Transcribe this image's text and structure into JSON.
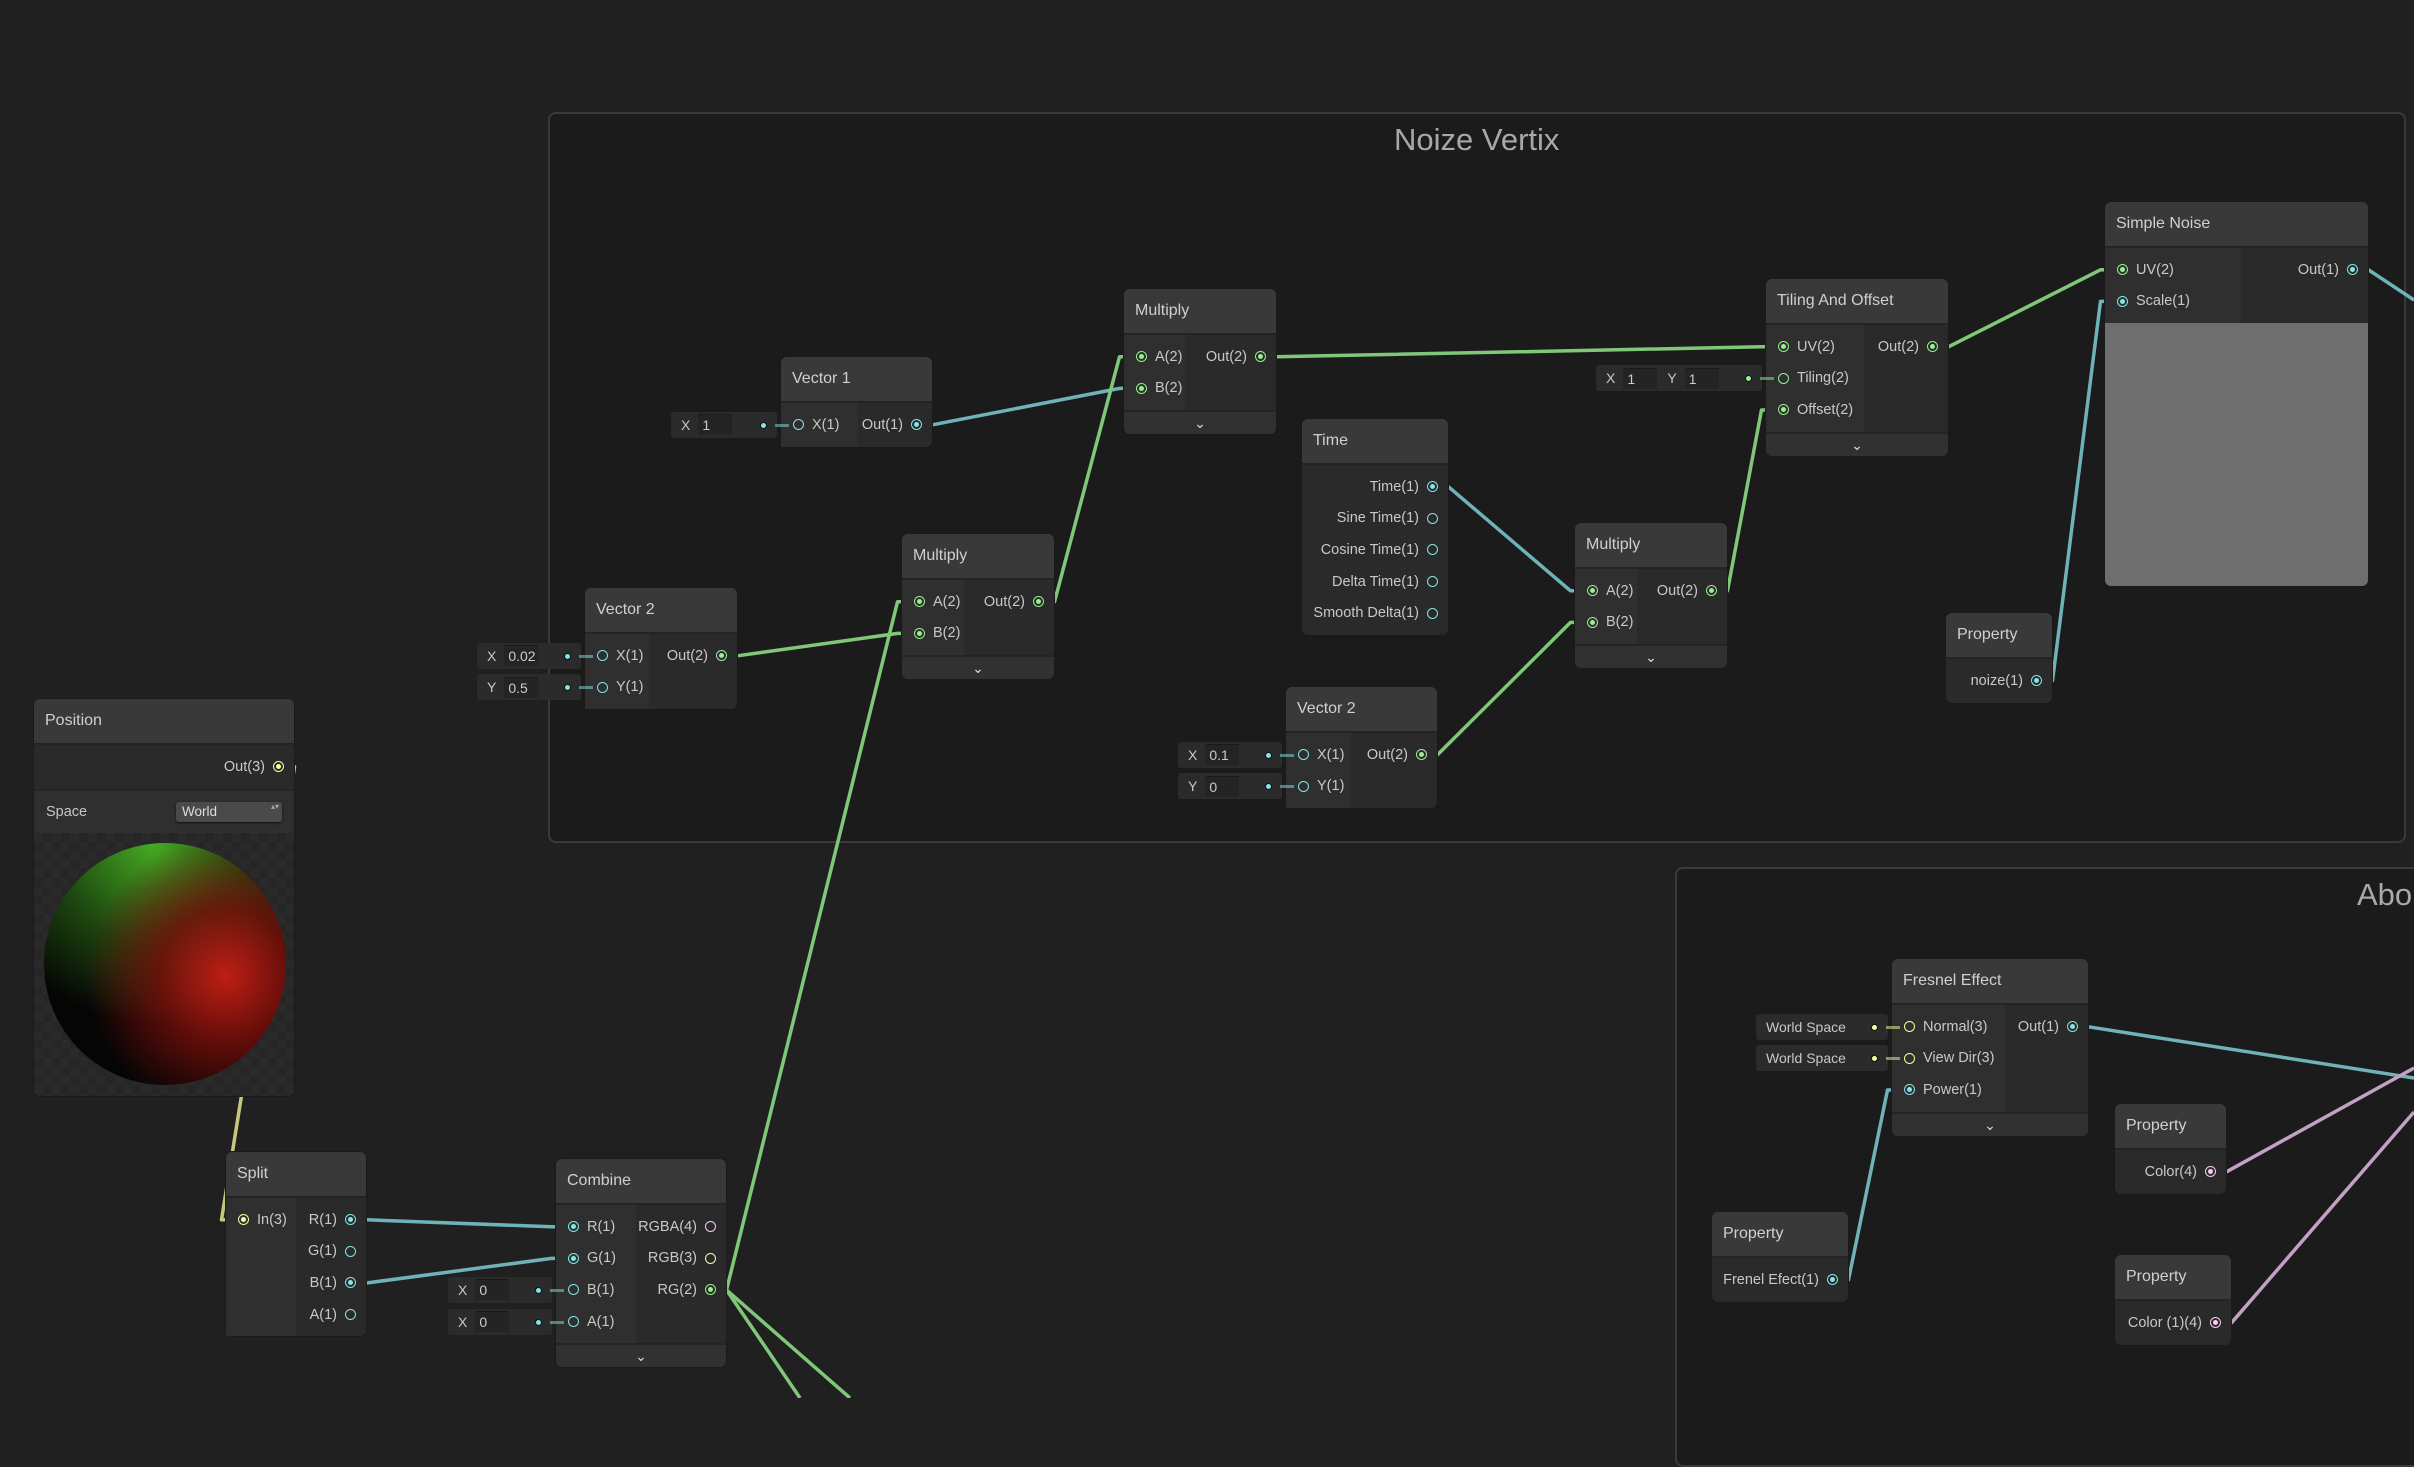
{
  "colors": {
    "canvas": "#202020",
    "group": "#1b1b1b",
    "vector1": "#84e4e7",
    "vector2": "#9aef92",
    "vector3": "#f6ff9a",
    "vector4": "#fbcbf4",
    "edge_vector1": "#6fb3b8",
    "edge_vector2": "#80c77a",
    "edge_vector3": "#c9c77c",
    "edge_vector4": "#c4a1c4"
  },
  "groups": [
    {
      "id": "noize",
      "title": "Noize Vertix"
    },
    {
      "id": "abo",
      "title": "Abo"
    }
  ],
  "collapse_icon": "chevron-down-icon",
  "nodes": [
    {
      "id": "position",
      "title": "Position",
      "inputs": [],
      "outputs": [
        {
          "label": "Out(3)",
          "type": "vector3"
        }
      ],
      "control": {
        "label": "Space",
        "value": "World"
      },
      "preview": "sphere"
    },
    {
      "id": "vector1",
      "title": "Vector 1",
      "inputs": [
        {
          "label": "X(1)",
          "type": "vector1",
          "field": [
            {
              "axis": "X",
              "value": "1"
            }
          ]
        }
      ],
      "outputs": [
        {
          "label": "Out(1)",
          "type": "vector1"
        }
      ]
    },
    {
      "id": "multiply_a",
      "title": "Multiply",
      "inputs": [
        {
          "label": "A(2)",
          "type": "vector2"
        },
        {
          "label": "B(2)",
          "type": "vector2"
        }
      ],
      "outputs": [
        {
          "label": "Out(2)",
          "type": "vector2"
        }
      ],
      "collapsible": true
    },
    {
      "id": "vector2_a",
      "title": "Vector 2",
      "inputs": [
        {
          "label": "X(1)",
          "type": "vector1",
          "field": [
            {
              "axis": "X",
              "value": "0.02"
            }
          ]
        },
        {
          "label": "Y(1)",
          "type": "vector1",
          "field": [
            {
              "axis": "Y",
              "value": "0.5"
            }
          ]
        }
      ],
      "outputs": [
        {
          "label": "Out(2)",
          "type": "vector2"
        }
      ]
    },
    {
      "id": "multiply_b",
      "title": "Multiply",
      "inputs": [
        {
          "label": "A(2)",
          "type": "vector2"
        },
        {
          "label": "B(2)",
          "type": "vector2"
        }
      ],
      "outputs": [
        {
          "label": "Out(2)",
          "type": "vector2"
        }
      ],
      "collapsible": true
    },
    {
      "id": "time",
      "title": "Time",
      "inputs": [],
      "outputs": [
        {
          "label": "Time(1)",
          "type": "vector1"
        },
        {
          "label": "Sine Time(1)",
          "type": "vector1"
        },
        {
          "label": "Cosine Time(1)",
          "type": "vector1"
        },
        {
          "label": "Delta Time(1)",
          "type": "vector1"
        },
        {
          "label": "Smooth Delta(1)",
          "type": "vector1"
        }
      ]
    },
    {
      "id": "multiply_c",
      "title": "Multiply",
      "inputs": [
        {
          "label": "A(2)",
          "type": "vector2"
        },
        {
          "label": "B(2)",
          "type": "vector2"
        }
      ],
      "outputs": [
        {
          "label": "Out(2)",
          "type": "vector2"
        }
      ],
      "collapsible": true
    },
    {
      "id": "vector2_b",
      "title": "Vector 2",
      "inputs": [
        {
          "label": "X(1)",
          "type": "vector1",
          "field": [
            {
              "axis": "X",
              "value": "0.1"
            }
          ]
        },
        {
          "label": "Y(1)",
          "type": "vector1",
          "field": [
            {
              "axis": "Y",
              "value": "0"
            }
          ]
        }
      ],
      "outputs": [
        {
          "label": "Out(2)",
          "type": "vector2"
        }
      ]
    },
    {
      "id": "tiling",
      "title": "Tiling And Offset",
      "inputs": [
        {
          "label": "UV(2)",
          "type": "vector2"
        },
        {
          "label": "Tiling(2)",
          "type": "vector2",
          "field": [
            {
              "axis": "X",
              "value": "1"
            },
            {
              "axis": "Y",
              "value": "1"
            }
          ]
        },
        {
          "label": "Offset(2)",
          "type": "vector2"
        }
      ],
      "outputs": [
        {
          "label": "Out(2)",
          "type": "vector2"
        }
      ],
      "collapsible": true
    },
    {
      "id": "simple_noise",
      "title": "Simple Noise",
      "inputs": [
        {
          "label": "UV(2)",
          "type": "vector2"
        },
        {
          "label": "Scale(1)",
          "type": "vector1"
        }
      ],
      "outputs": [
        {
          "label": "Out(1)",
          "type": "vector1"
        }
      ],
      "preview": "noise"
    },
    {
      "id": "property_noize",
      "title": "Property",
      "inputs": [],
      "outputs": [
        {
          "label": "noize(1)",
          "type": "vector1"
        }
      ]
    },
    {
      "id": "split",
      "title": "Split",
      "inputs": [
        {
          "label": "In(3)",
          "type": "vector3"
        }
      ],
      "outputs": [
        {
          "label": "R(1)",
          "type": "vector1"
        },
        {
          "label": "G(1)",
          "type": "vector1"
        },
        {
          "label": "B(1)",
          "type": "vector1"
        },
        {
          "label": "A(1)",
          "type": "vector1"
        }
      ]
    },
    {
      "id": "combine",
      "title": "Combine",
      "inputs": [
        {
          "label": "R(1)",
          "type": "vector1"
        },
        {
          "label": "G(1)",
          "type": "vector1"
        },
        {
          "label": "B(1)",
          "type": "vector1",
          "field": [
            {
              "axis": "X",
              "value": "0"
            }
          ]
        },
        {
          "label": "A(1)",
          "type": "vector1",
          "field": [
            {
              "axis": "X",
              "value": "0"
            }
          ]
        }
      ],
      "outputs": [
        {
          "label": "RGBA(4)",
          "type": "vector4"
        },
        {
          "label": "RGB(3)",
          "type": "vector3"
        },
        {
          "label": "RG(2)",
          "type": "vector2"
        }
      ],
      "collapsible": true
    },
    {
      "id": "fresnel",
      "title": "Fresnel Effect",
      "inputs": [
        {
          "label": "Normal(3)",
          "type": "vector3",
          "field": [
            {
              "text": "World Space"
            }
          ]
        },
        {
          "label": "View Dir(3)",
          "type": "vector3",
          "field": [
            {
              "text": "World Space"
            }
          ]
        },
        {
          "label": "Power(1)",
          "type": "vector1"
        }
      ],
      "outputs": [
        {
          "label": "Out(1)",
          "type": "vector1"
        }
      ],
      "collapsible": true
    },
    {
      "id": "property_frenel",
      "title": "Property",
      "inputs": [],
      "outputs": [
        {
          "label": "Frenel Efect(1)",
          "type": "vector1"
        }
      ]
    },
    {
      "id": "property_color",
      "title": "Property",
      "inputs": [],
      "outputs": [
        {
          "label": "Color(4)",
          "type": "vector4"
        }
      ]
    },
    {
      "id": "property_color1",
      "title": "Property",
      "inputs": [],
      "outputs": [
        {
          "label": "Color (1)(4)",
          "type": "vector4"
        }
      ]
    }
  ],
  "edges": [
    {
      "from": "vector1.out.0",
      "to": "multiply_a.in.1"
    },
    {
      "from": "multiply_b.out.0",
      "to": "multiply_a.in.0"
    },
    {
      "from": "vector2_a.out.0",
      "to": "multiply_b.in.1"
    },
    {
      "from": "combine.out.2",
      "to": "multiply_b.in.0"
    },
    {
      "from": "multiply_a.out.0",
      "to": "tiling.in.0"
    },
    {
      "from": "time.out.0",
      "to": "multiply_c.in.0"
    },
    {
      "from": "vector2_b.out.0",
      "to": "multiply_c.in.1"
    },
    {
      "from": "multiply_c.out.0",
      "to": "tiling.in.2"
    },
    {
      "from": "tiling.out.0",
      "to": "simple_noise.in.0"
    },
    {
      "from": "property_noize.out.0",
      "to": "simple_noise.in.1"
    },
    {
      "from": "position.out.0",
      "to": "split.in.0"
    },
    {
      "from": "split.out.0",
      "to": "combine.in.0"
    },
    {
      "from": "split.out.2",
      "to": "combine.in.1"
    },
    {
      "from": "property_frenel.out.0",
      "to": "fresnel.in.2"
    },
    {
      "from": "simple_noise.out.0",
      "to": "offscreen"
    },
    {
      "from": "combine.out.2",
      "to": "offscreen"
    },
    {
      "from": "combine.out.2",
      "to": "offscreen"
    },
    {
      "from": "fresnel.out.0",
      "to": "offscreen"
    },
    {
      "from": "property_color.out.0",
      "to": "offscreen"
    },
    {
      "from": "property_color1.out.0",
      "to": "offscreen"
    }
  ]
}
